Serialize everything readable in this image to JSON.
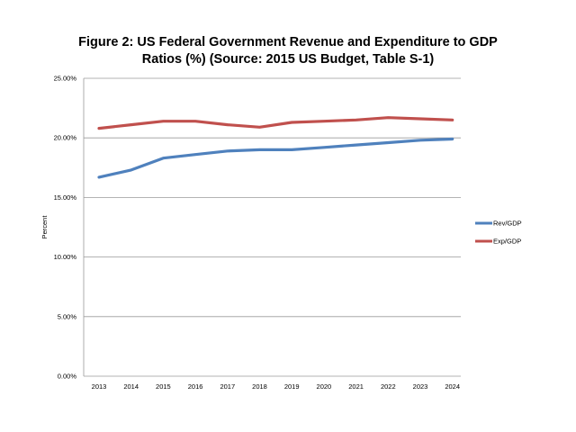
{
  "chart_data": {
    "type": "line",
    "title_line1": "Figure 2: US Federal Government Revenue and Expenditure to GDP",
    "title_line2": "Ratios (%) (Source: 2015 US Budget, Table S-1)",
    "xlabel": "",
    "ylabel": "Percent",
    "categories": [
      "2013",
      "2014",
      "2015",
      "2016",
      "2017",
      "2018",
      "2019",
      "2020",
      "2021",
      "2022",
      "2023",
      "2024"
    ],
    "ylim": [
      0,
      25
    ],
    "yticks": [
      "0.00%",
      "5.00%",
      "10.00%",
      "15.00%",
      "20.00%",
      "25.00%"
    ],
    "grid": true,
    "legend_position": "right",
    "series": [
      {
        "name": "Rev/GDP",
        "color": "#4f81bd",
        "values": [
          16.7,
          17.3,
          18.3,
          18.6,
          18.9,
          19.0,
          19.0,
          19.2,
          19.4,
          19.6,
          19.8,
          19.9
        ]
      },
      {
        "name": "Exp/GDP",
        "color": "#c0504d",
        "values": [
          20.8,
          21.1,
          21.4,
          21.4,
          21.1,
          20.9,
          21.3,
          21.4,
          21.5,
          21.7,
          21.6,
          21.5
        ]
      }
    ]
  }
}
